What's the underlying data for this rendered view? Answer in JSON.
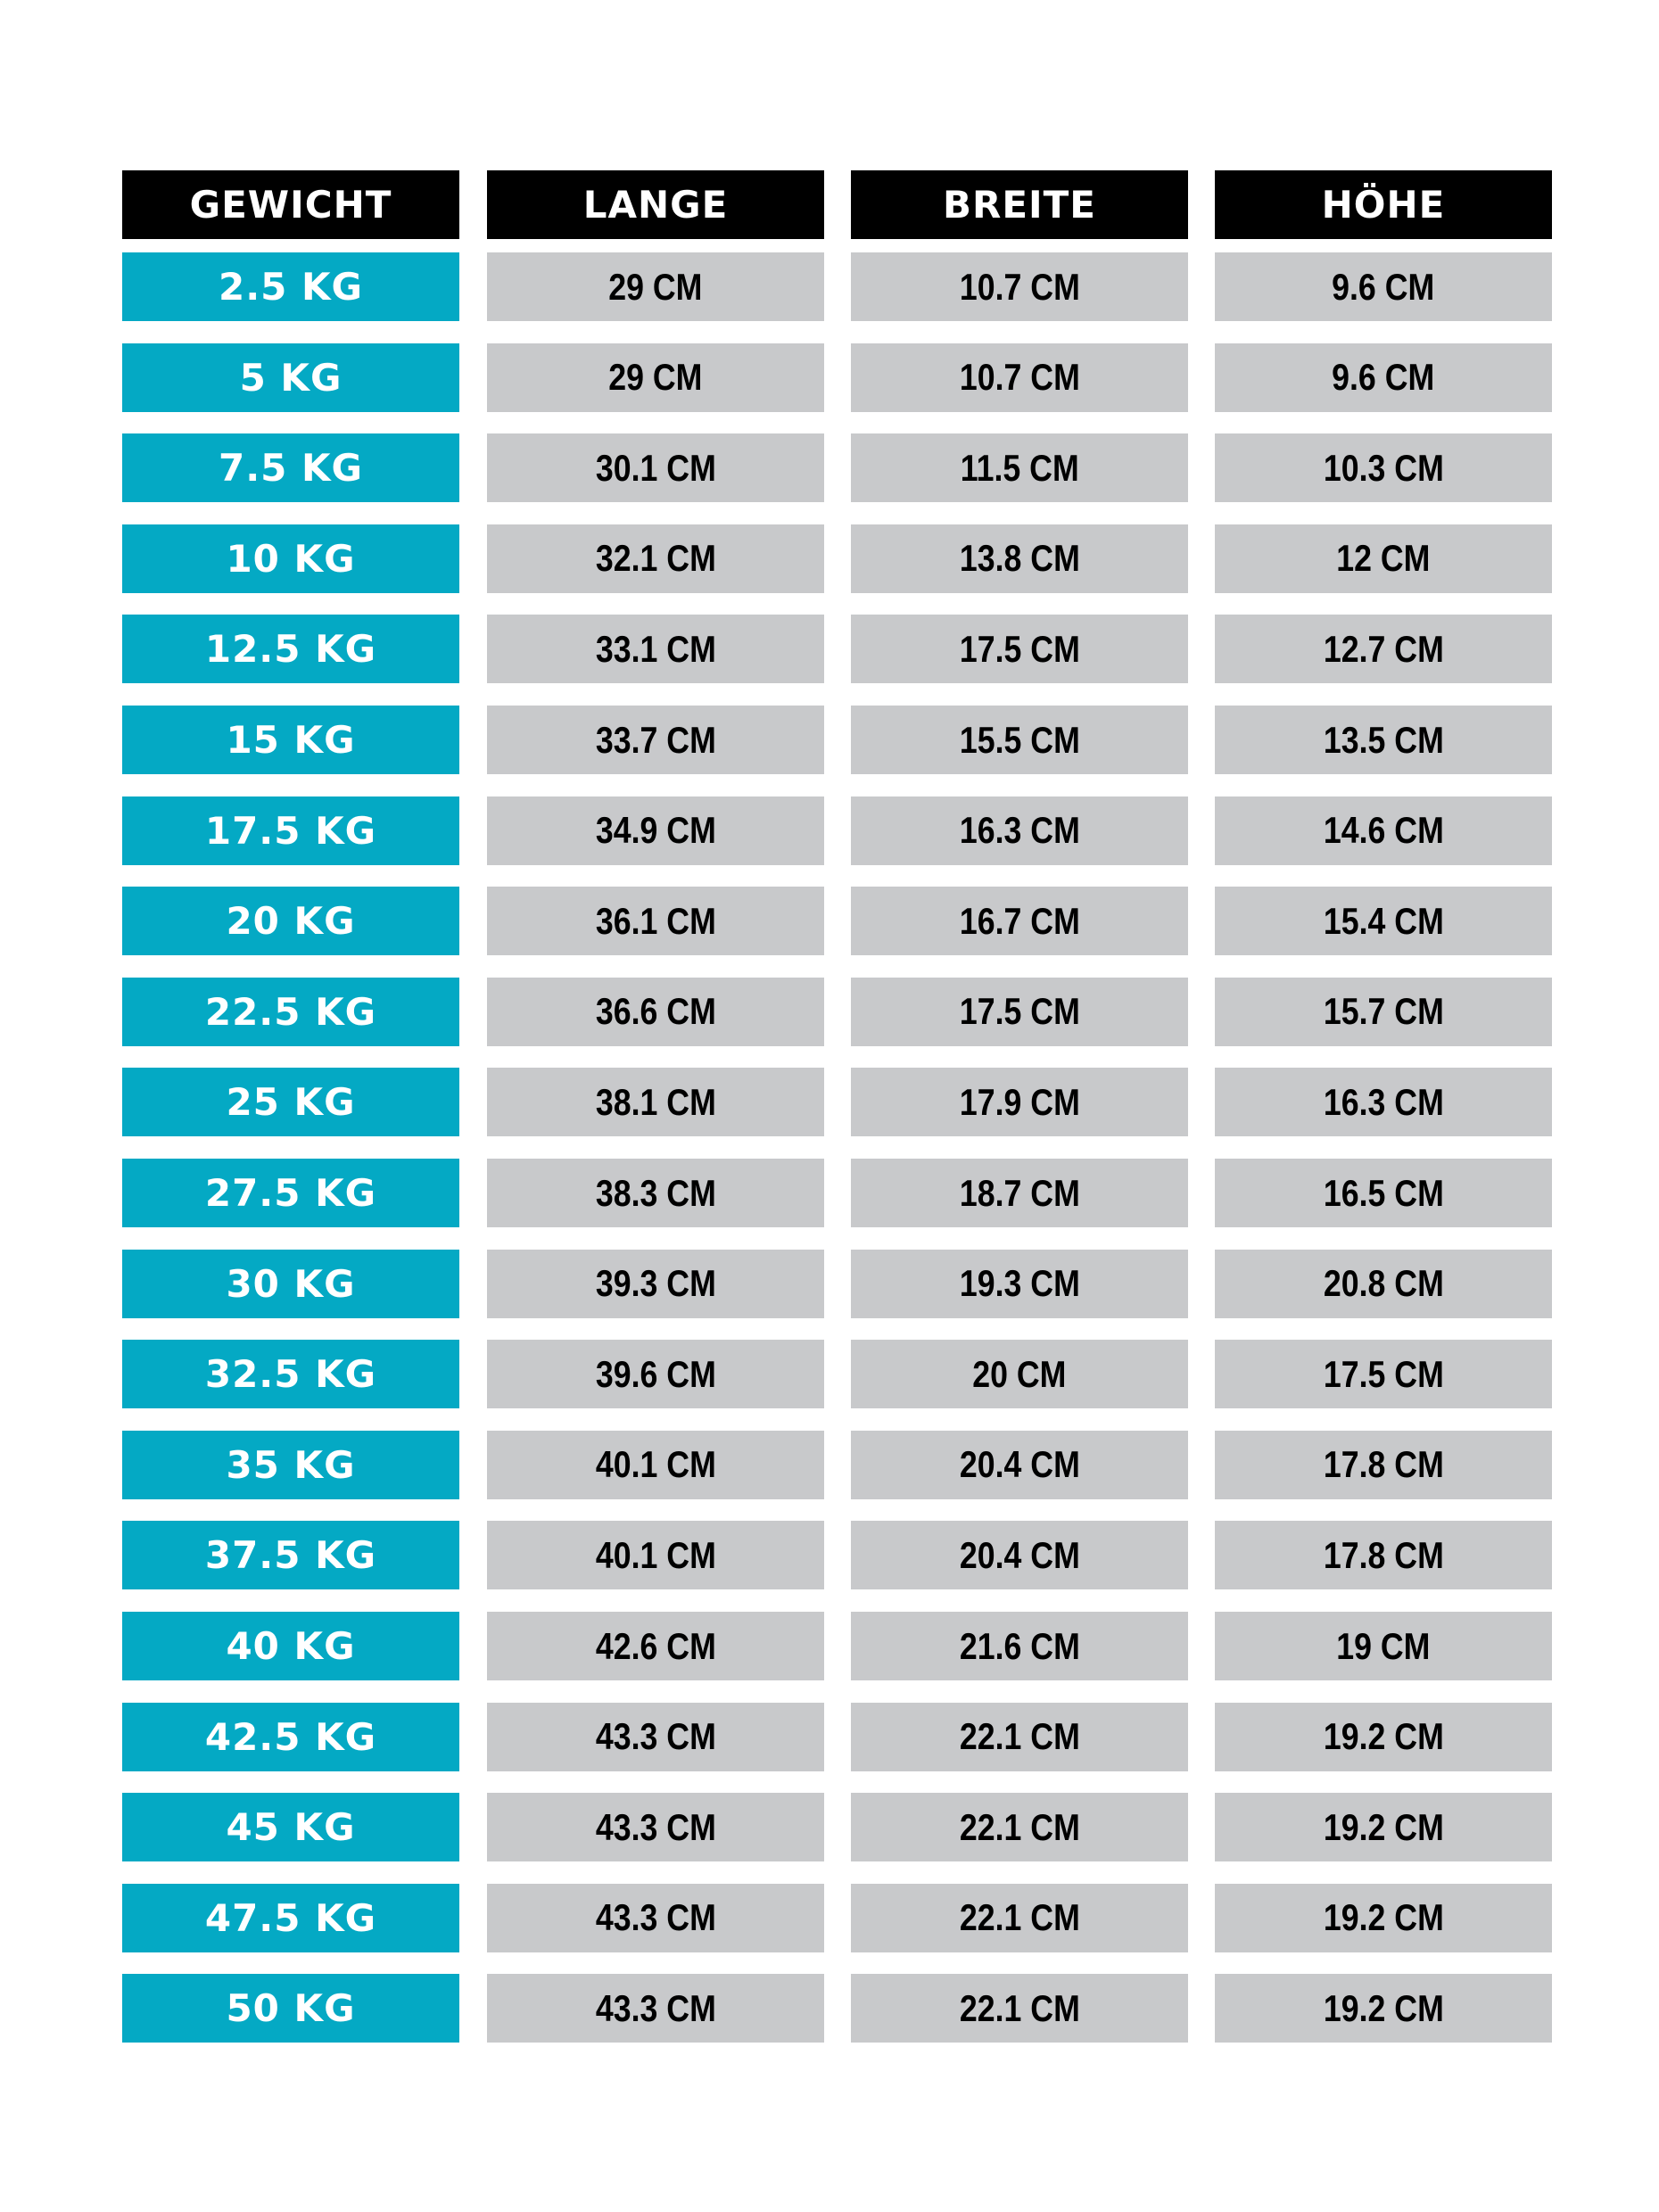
{
  "headers": [
    "GEWICHT",
    "LANGE",
    "BREITE",
    "HÖHE"
  ],
  "colors": {
    "header_bg": "#000000",
    "weight_bg": "#04a9c4",
    "value_bg": "#c8c9cb"
  },
  "rows": [
    [
      "2.5 KG",
      "29 CM",
      "10.7 CM",
      "9.6 CM"
    ],
    [
      "5 KG",
      "29 CM",
      "10.7 CM",
      "9.6 CM"
    ],
    [
      "7.5 KG",
      "30.1 CM",
      "11.5 CM",
      "10.3 CM"
    ],
    [
      "10 KG",
      "32.1 CM",
      "13.8 CM",
      "12 CM"
    ],
    [
      "12.5 KG",
      "33.1 CM",
      "17.5 CM",
      "12.7 CM"
    ],
    [
      "15 KG",
      "33.7 CM",
      "15.5 CM",
      "13.5 CM"
    ],
    [
      "17.5 KG",
      "34.9 CM",
      "16.3 CM",
      "14.6 CM"
    ],
    [
      "20 KG",
      "36.1 CM",
      "16.7 CM",
      "15.4 CM"
    ],
    [
      "22.5 KG",
      "36.6 CM",
      "17.5 CM",
      "15.7 CM"
    ],
    [
      "25 KG",
      "38.1 CM",
      "17.9 CM",
      "16.3 CM"
    ],
    [
      "27.5 KG",
      "38.3 CM",
      "18.7 CM",
      "16.5 CM"
    ],
    [
      "30 KG",
      "39.3 CM",
      "19.3 CM",
      "20.8 CM"
    ],
    [
      "32.5 KG",
      "39.6 CM",
      "20 CM",
      "17.5 CM"
    ],
    [
      "35 KG",
      "40.1 CM",
      "20.4 CM",
      "17.8 CM"
    ],
    [
      "37.5 KG",
      "40.1 CM",
      "20.4 CM",
      "17.8 CM"
    ],
    [
      "40 KG",
      "42.6 CM",
      "21.6 CM",
      "19 CM"
    ],
    [
      "42.5 KG",
      "43.3 CM",
      "22.1 CM",
      "19.2 CM"
    ],
    [
      "45 KG",
      "43.3 CM",
      "22.1 CM",
      "19.2 CM"
    ],
    [
      "47.5 KG",
      "43.3 CM",
      "22.1 CM",
      "19.2 CM"
    ],
    [
      "50 KG",
      "43.3 CM",
      "22.1 CM",
      "19.2 CM"
    ]
  ]
}
